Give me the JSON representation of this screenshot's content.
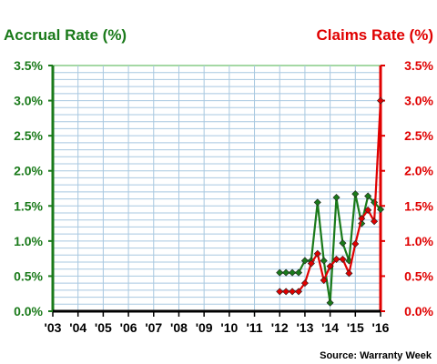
{
  "chart_data": {
    "type": "line",
    "title_left": "Accrual Rate (%)",
    "title_right": "Claims Rate (%)",
    "source": "Source: Warranty Week",
    "x_tick_labels": [
      "'03",
      "'04",
      "'05",
      "'06",
      "'07",
      "'08",
      "'09",
      "'10",
      "'11",
      "'12",
      "'13",
      "'14",
      "'15",
      "'16"
    ],
    "xlim": [
      2003,
      2016
    ],
    "y_left": {
      "ticks": [
        "0.0%",
        "0.5%",
        "1.0%",
        "1.5%",
        "2.0%",
        "2.5%",
        "3.0%",
        "3.5%"
      ],
      "ylim": [
        0,
        3.5
      ]
    },
    "y_right": {
      "ticks": [
        "0.0%",
        "0.5%",
        "1.0%",
        "1.5%",
        "2.0%",
        "2.5%",
        "3.0%",
        "3.5%"
      ],
      "ylim": [
        0,
        3.5
      ]
    },
    "grid": true,
    "series": [
      {
        "axis": "left",
        "color": "#1a7a1a",
        "x": [
          2012.0,
          2012.25,
          2012.5,
          2012.75,
          2013.0,
          2013.25,
          2013.5,
          2013.75,
          2014.0,
          2014.25,
          2014.5,
          2014.75,
          2015.0,
          2015.25,
          2015.5,
          2015.75,
          2016.0
        ],
        "values": [
          0.55,
          0.55,
          0.55,
          0.55,
          0.72,
          0.72,
          1.55,
          0.72,
          0.12,
          1.62,
          0.97,
          0.72,
          1.67,
          1.25,
          1.64,
          1.55,
          1.45
        ]
      },
      {
        "axis": "right",
        "color": "#e00000",
        "x": [
          2012.0,
          2012.25,
          2012.5,
          2012.75,
          2013.0,
          2013.25,
          2013.5,
          2013.75,
          2014.0,
          2014.25,
          2014.5,
          2014.75,
          2015.0,
          2015.25,
          2015.5,
          2015.75,
          2016.0
        ],
        "values": [
          0.28,
          0.28,
          0.28,
          0.28,
          0.4,
          0.68,
          0.82,
          0.44,
          0.64,
          0.74,
          0.74,
          0.54,
          0.96,
          1.32,
          1.44,
          1.28,
          3.0
        ]
      }
    ],
    "colors": {
      "left_axis": "#1a7a1a",
      "right_axis": "#e00000",
      "grid": "#a8c8e0",
      "plot_border": "#4ab04a"
    }
  }
}
